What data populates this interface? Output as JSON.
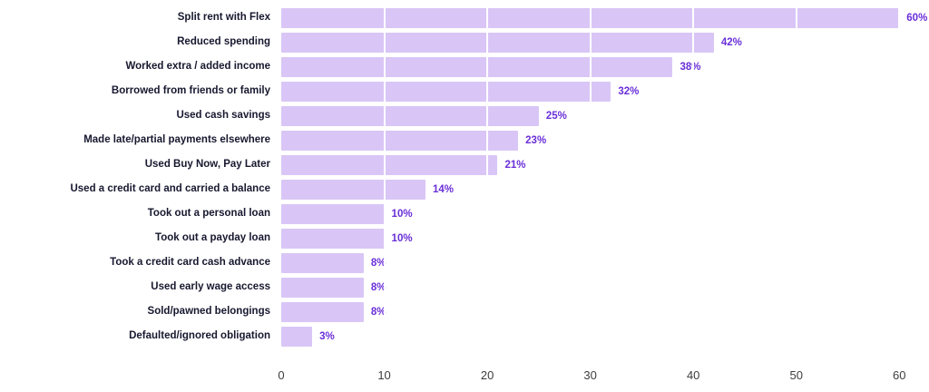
{
  "chart_data": {
    "type": "bar",
    "orientation": "horizontal",
    "title": "",
    "xlabel": "",
    "ylabel": "",
    "categories": [
      "Split rent with Flex",
      "Reduced spending",
      "Worked extra / added income",
      "Borrowed from friends or family",
      "Used cash savings",
      "Made late/partial payments elsewhere",
      "Used Buy Now, Pay Later",
      "Used a credit card and carried a balance",
      "Took out a personal loan",
      "Took out a payday loan",
      "Took a credit card cash advance",
      "Used early wage access",
      "Sold/pawned belongings",
      "Defaulted/ignored obligation"
    ],
    "values": [
      60,
      42,
      38,
      32,
      25,
      23,
      21,
      14,
      10,
      10,
      8,
      8,
      8,
      3
    ],
    "value_labels": [
      "60%",
      "42%",
      "38%",
      "32%",
      "25%",
      "23%",
      "21%",
      "14%",
      "10%",
      "10%",
      "8%",
      "8%",
      "8%",
      "3%"
    ],
    "x_ticks": [
      0,
      10,
      20,
      30,
      40,
      50,
      60
    ],
    "xlim": [
      0,
      62
    ],
    "grid": "vertical-white-lines",
    "legend": "none",
    "colors": {
      "bar": "#d9c6f6",
      "value_label": "#6a2fd8",
      "category_label": "#17182f",
      "tick_label": "#3d3d3d",
      "gridline": "#ffffff",
      "background": "#ffffff"
    }
  }
}
